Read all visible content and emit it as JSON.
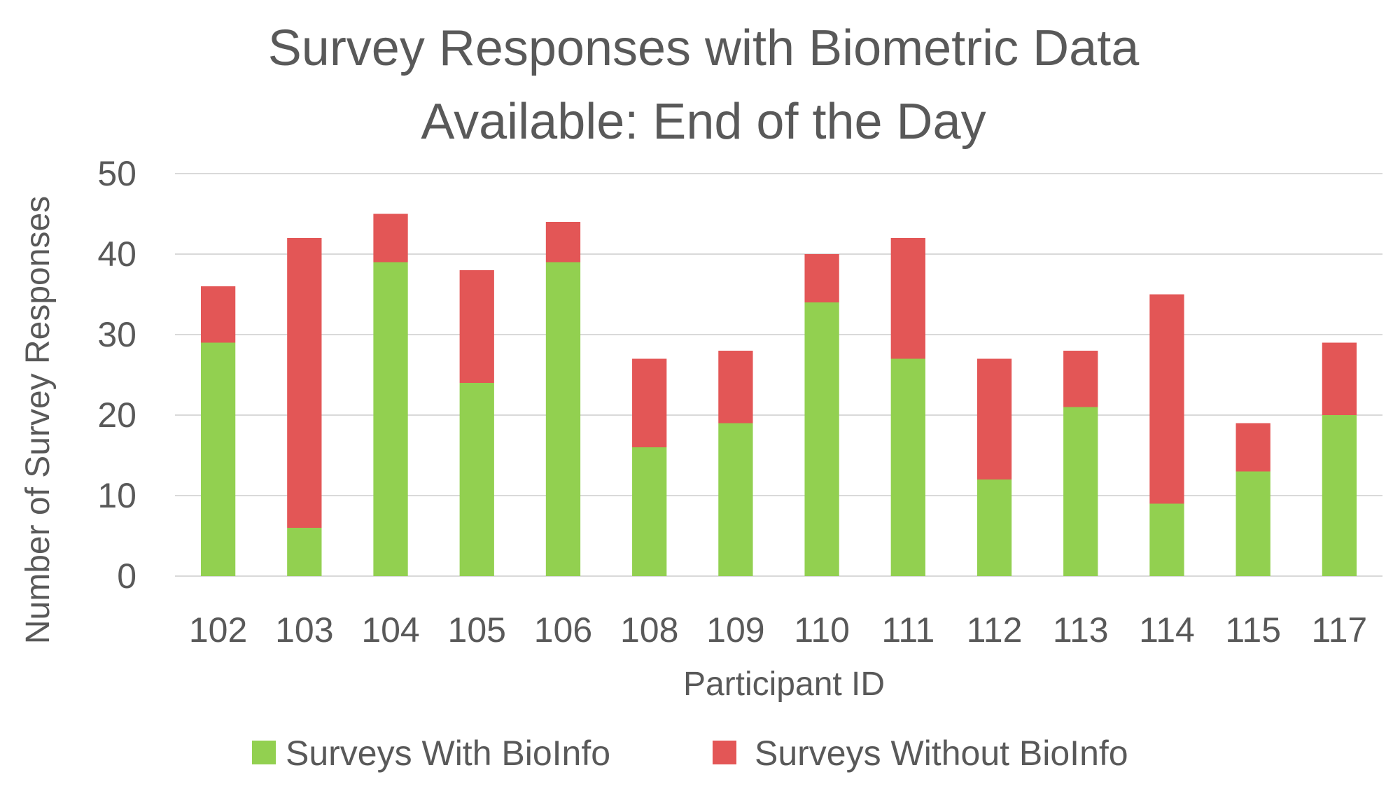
{
  "chart_data": {
    "type": "bar",
    "stacked": true,
    "title": "Survey Responses with Biometric Data Available: End of the Day",
    "title_lines": [
      "Survey Responses with Biometric Data",
      "Available: End of the Day"
    ],
    "xlabel": "Participant ID",
    "ylabel": "Number of Survey Responses",
    "ylim": [
      0,
      50
    ],
    "yticks": [
      0,
      10,
      20,
      30,
      40,
      50
    ],
    "grid": true,
    "legend_position": "bottom",
    "categories": [
      "102",
      "103",
      "104",
      "105",
      "106",
      "108",
      "109",
      "110",
      "111",
      "112",
      "113",
      "114",
      "115",
      "117"
    ],
    "series": [
      {
        "name": "Surveys With BioInfo",
        "color": "#92d050",
        "values": [
          29,
          6,
          39,
          24,
          39,
          16,
          19,
          34,
          27,
          12,
          21,
          9,
          13,
          20
        ]
      },
      {
        "name": "Surveys Without BioInfo",
        "color": "#e35656",
        "values": [
          7,
          36,
          6,
          14,
          5,
          11,
          9,
          6,
          15,
          15,
          7,
          26,
          6,
          9
        ]
      }
    ]
  }
}
